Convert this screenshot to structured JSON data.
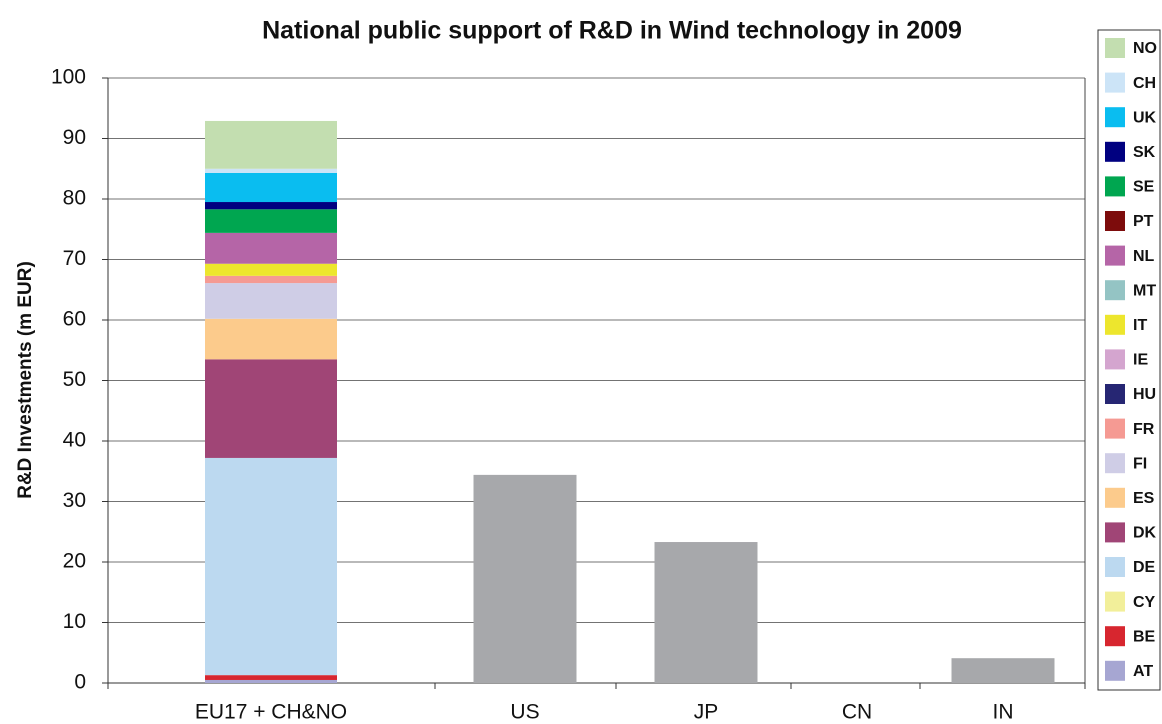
{
  "chart_data": {
    "type": "stacked_bar",
    "title": "National public support of R&D in Wind technology in 2009",
    "y_label": "R&D Investments (m EUR)",
    "categories": [
      "EU17 + CH&NO",
      "US",
      "JP",
      "CN",
      "IN"
    ],
    "ylim": [
      0,
      100
    ],
    "yticks": [
      0,
      10,
      20,
      30,
      40,
      50,
      60,
      70,
      80,
      90,
      100
    ],
    "grid": true,
    "legend": "right",
    "series": [
      {
        "name": "AT",
        "color": "#a6a6d2",
        "values": [
          0.5,
          null,
          null,
          null,
          null
        ]
      },
      {
        "name": "BE",
        "color": "#d7262f",
        "values": [
          0.8,
          null,
          null,
          null,
          null
        ]
      },
      {
        "name": "CY",
        "color": "#f2ef9a",
        "values": [
          0,
          null,
          null,
          null,
          null
        ]
      },
      {
        "name": "DE",
        "color": "#bcd9f0",
        "values": [
          35.9,
          null,
          null,
          null,
          null
        ]
      },
      {
        "name": "DK",
        "color": "#a04576",
        "values": [
          16.3,
          null,
          null,
          null,
          null
        ]
      },
      {
        "name": "ES",
        "color": "#fccb8c",
        "values": [
          6.7,
          null,
          null,
          null,
          null
        ]
      },
      {
        "name": "FI",
        "color": "#cfcde6",
        "values": [
          5.9,
          null,
          null,
          null,
          null
        ]
      },
      {
        "name": "FR",
        "color": "#f59a93",
        "values": [
          1.2,
          null,
          null,
          null,
          null
        ]
      },
      {
        "name": "HU",
        "color": "#262673",
        "values": [
          0,
          null,
          null,
          null,
          null
        ]
      },
      {
        "name": "IE",
        "color": "#d4a5cf",
        "values": [
          0,
          null,
          null,
          null,
          null
        ]
      },
      {
        "name": "IT",
        "color": "#ede62d",
        "values": [
          2.0,
          null,
          null,
          null,
          null
        ]
      },
      {
        "name": "MT",
        "color": "#94c4c4",
        "values": [
          0,
          null,
          null,
          null,
          null
        ]
      },
      {
        "name": "NL",
        "color": "#b565a7",
        "values": [
          5.1,
          null,
          null,
          null,
          null
        ]
      },
      {
        "name": "PT",
        "color": "#7d0c0c",
        "values": [
          0,
          null,
          null,
          null,
          null
        ]
      },
      {
        "name": "SE",
        "color": "#00a650",
        "values": [
          3.9,
          null,
          null,
          null,
          null
        ]
      },
      {
        "name": "SK",
        "color": "#000080",
        "values": [
          1.2,
          null,
          null,
          null,
          null
        ]
      },
      {
        "name": "UK",
        "color": "#0abdf0",
        "values": [
          4.8,
          null,
          null,
          null,
          null
        ]
      },
      {
        "name": "CH",
        "color": "#cce4f7",
        "values": [
          0.7,
          null,
          null,
          null,
          null
        ]
      },
      {
        "name": "NO",
        "color": "#c3deb0",
        "values": [
          7.9,
          null,
          null,
          null,
          null
        ]
      },
      {
        "color": "#a7a8ab",
        "values": [
          null,
          34.4,
          23.3,
          0,
          4.1
        ]
      }
    ]
  }
}
